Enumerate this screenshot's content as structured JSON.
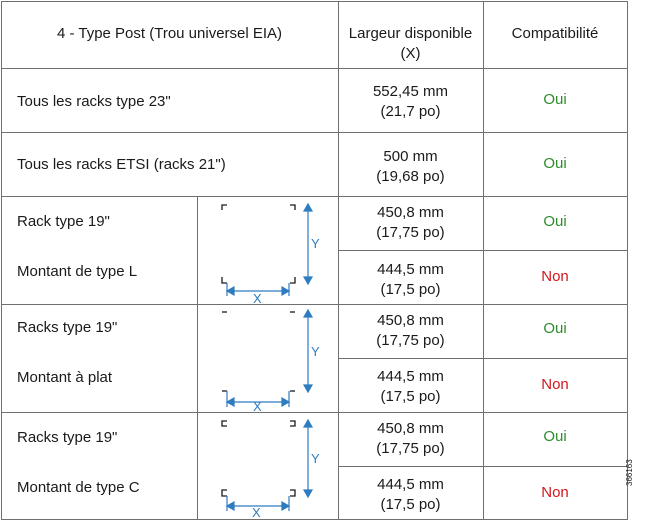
{
  "header": {
    "type_post": "4 - Type Post (Trou universel EIA)",
    "largeur_line1": "Largeur disponible",
    "largeur_line2": "(X)",
    "compat": "Compatibilité"
  },
  "rows": [
    {
      "label": "Tous les racks type 23\"",
      "width_mm": "552,45 mm",
      "width_po": "(21,7 po)",
      "compat": "Oui"
    },
    {
      "label": "Tous les racks ETSI (racks 21\")",
      "width_mm": "500 mm",
      "width_po": "(19,68 po)",
      "compat": "Oui"
    }
  ],
  "groups": [
    {
      "rack": "Rack type 19\"",
      "montant": "Montant de type L",
      "a": {
        "width_mm": "450,8 mm",
        "width_po": "(17,75 po)",
        "compat": "Oui"
      },
      "b": {
        "width_mm": "444,5 mm",
        "width_po": "(17,5 po)",
        "compat": "Non"
      },
      "diagram": {
        "x_label": "X",
        "y_label": "Y",
        "post_shape": "L"
      }
    },
    {
      "rack": "Racks type 19\"",
      "montant": "Montant à plat",
      "a": {
        "width_mm": "450,8 mm",
        "width_po": "(17,75 po)",
        "compat": "Oui"
      },
      "b": {
        "width_mm": "444,5 mm",
        "width_po": "(17,5 po)",
        "compat": "Non"
      },
      "diagram": {
        "x_label": "X",
        "y_label": "Y",
        "post_shape": "flat"
      }
    },
    {
      "rack": "Racks type 19\"",
      "montant": "Montant de type C",
      "a": {
        "width_mm": "450,8 mm",
        "width_po": "(17,75 po)",
        "compat": "Oui"
      },
      "b": {
        "width_mm": "444,5 mm",
        "width_po": "(17,5 po)",
        "compat": "Non"
      },
      "diagram": {
        "x_label": "X",
        "y_label": "Y",
        "post_shape": "C"
      }
    }
  ],
  "figure_id": "366163",
  "colors": {
    "oui": "#2e8b2e",
    "non": "#d0181e",
    "arrow": "#2f7cc0",
    "border": "#6f6f6f"
  }
}
